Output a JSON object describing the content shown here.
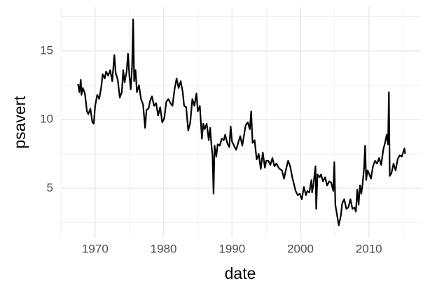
{
  "chart_data": {
    "type": "line",
    "xlabel": "date",
    "ylabel": "psavert",
    "x": [
      1967.5,
      1967.7,
      1967.9,
      1968.0,
      1968.2,
      1968.5,
      1968.8,
      1969.0,
      1969.3,
      1969.6,
      1969.8,
      1970.0,
      1970.3,
      1970.6,
      1970.9,
      1971.1,
      1971.4,
      1971.6,
      1971.9,
      1972.2,
      1972.5,
      1972.8,
      1973.0,
      1973.3,
      1973.6,
      1973.9,
      1974.1,
      1974.3,
      1974.6,
      1974.8,
      1975.0,
      1975.2,
      1975.4,
      1975.55,
      1975.7,
      1975.9,
      1976.1,
      1976.4,
      1976.7,
      1977.0,
      1977.3,
      1977.5,
      1977.8,
      1978.0,
      1978.3,
      1978.6,
      1978.9,
      1979.2,
      1979.5,
      1979.8,
      1980.1,
      1980.4,
      1980.7,
      1981.0,
      1981.3,
      1981.6,
      1981.9,
      1982.2,
      1982.5,
      1982.8,
      1983.0,
      1983.3,
      1983.6,
      1983.9,
      1984.2,
      1984.5,
      1984.8,
      1985.0,
      1985.3,
      1985.6,
      1985.8,
      1986.0,
      1986.3,
      1986.6,
      1986.8,
      1987.0,
      1987.15,
      1987.3,
      1987.45,
      1987.7,
      1987.9,
      1988.2,
      1988.5,
      1988.8,
      1989.0,
      1989.3,
      1989.6,
      1989.8,
      1990.0,
      1990.3,
      1990.6,
      1990.9,
      1991.2,
      1991.5,
      1991.8,
      1992.0,
      1992.3,
      1992.6,
      1992.8,
      1993.0,
      1993.3,
      1993.6,
      1993.9,
      1994.2,
      1994.5,
      1994.8,
      1995.0,
      1995.3,
      1995.6,
      1995.9,
      1996.2,
      1996.5,
      1996.8,
      1997.0,
      1997.3,
      1997.6,
      1997.9,
      1998.2,
      1998.5,
      1998.8,
      1999.0,
      1999.3,
      1999.6,
      1999.9,
      2000.2,
      2000.5,
      2000.8,
      2001.0,
      2001.3,
      2001.6,
      2001.7,
      2001.9,
      2002.2,
      2002.3,
      2002.5,
      2002.8,
      2003.0,
      2003.3,
      2003.6,
      2003.9,
      2004.2,
      2004.5,
      2004.8,
      2004.95,
      2005.1,
      2005.4,
      2005.6,
      2005.9,
      2006.1,
      2006.4,
      2006.7,
      2007.0,
      2007.3,
      2007.6,
      2007.9,
      2008.1,
      2008.3,
      2008.5,
      2008.7,
      2008.9,
      2009.1,
      2009.3,
      2009.45,
      2009.6,
      2009.8,
      2010.0,
      2010.3,
      2010.6,
      2010.9,
      2011.2,
      2011.5,
      2011.8,
      2012.1,
      2012.4,
      2012.6,
      2012.8,
      2012.92,
      2013.05,
      2013.3,
      2013.6,
      2013.9,
      2014.2,
      2014.5,
      2014.8,
      2015.0,
      2015.2,
      2015.3
    ],
    "series": [
      {
        "color": "#000000",
        "values": [
          12.6,
          12.0,
          12.9,
          11.8,
          12.3,
          11.9,
          10.6,
          10.4,
          10.8,
          9.8,
          9.7,
          11.0,
          11.8,
          11.5,
          12.4,
          13.3,
          13.0,
          13.5,
          13.2,
          13.6,
          12.8,
          14.7,
          13.4,
          12.9,
          11.6,
          12.0,
          13.6,
          12.7,
          13.5,
          14.8,
          13.2,
          12.2,
          13.9,
          17.3,
          12.8,
          13.6,
          12.0,
          12.5,
          11.5,
          11.1,
          9.4,
          10.7,
          10.8,
          11.3,
          11.7,
          11.0,
          11.2,
          10.3,
          10.9,
          9.8,
          10.1,
          11.3,
          11.5,
          11.2,
          11.0,
          12.2,
          13.0,
          12.3,
          12.8,
          12.0,
          11.0,
          10.9,
          9.2,
          9.8,
          11.5,
          11.0,
          11.9,
          10.6,
          11.0,
          8.6,
          9.7,
          9.3,
          9.7,
          8.5,
          9.4,
          8.1,
          7.4,
          4.6,
          8.1,
          7.3,
          8.2,
          8.1,
          8.6,
          8.5,
          8.9,
          8.3,
          8.0,
          9.5,
          8.4,
          8.1,
          7.8,
          8.3,
          8.8,
          8.1,
          9.0,
          9.6,
          9.8,
          9.3,
          10.6,
          8.3,
          8.5,
          7.1,
          7.5,
          6.4,
          7.6,
          6.5,
          7.0,
          7.0,
          6.7,
          7.2,
          6.6,
          6.8,
          6.5,
          6.4,
          6.3,
          5.7,
          6.4,
          7.0,
          6.6,
          5.8,
          5.4,
          4.8,
          4.5,
          4.6,
          4.2,
          5.1,
          4.5,
          4.8,
          4.7,
          5.6,
          4.7,
          5.3,
          6.6,
          3.5,
          6.0,
          5.8,
          6.0,
          5.5,
          5.8,
          5.2,
          5.5,
          5.4,
          4.8,
          6.9,
          3.8,
          2.9,
          2.3,
          3.0,
          3.9,
          4.2,
          3.5,
          3.6,
          4.2,
          3.5,
          3.6,
          3.3,
          4.9,
          3.8,
          5.2,
          4.6,
          5.4,
          6.5,
          8.1,
          5.6,
          6.3,
          6.1,
          5.7,
          6.6,
          7.0,
          6.8,
          7.2,
          6.7,
          7.8,
          8.4,
          8.9,
          8.2,
          12.0,
          5.9,
          6.1,
          6.8,
          6.3,
          7.1,
          7.4,
          7.3,
          7.6,
          7.9,
          7.5
        ]
      }
    ],
    "xlim": [
      1965.1,
      2017.6
    ],
    "xticks": [
      1970,
      1980,
      1990,
      2000,
      2010
    ],
    "ylim": [
      1.4,
      18.2
    ],
    "yticks": [
      5,
      10,
      15
    ],
    "minor_xticks": [
      1965,
      1975,
      1985,
      1995,
      2005,
      2015
    ],
    "minor_yticks": [
      2.5,
      7.5,
      12.5,
      17.5
    ],
    "grid": true
  }
}
